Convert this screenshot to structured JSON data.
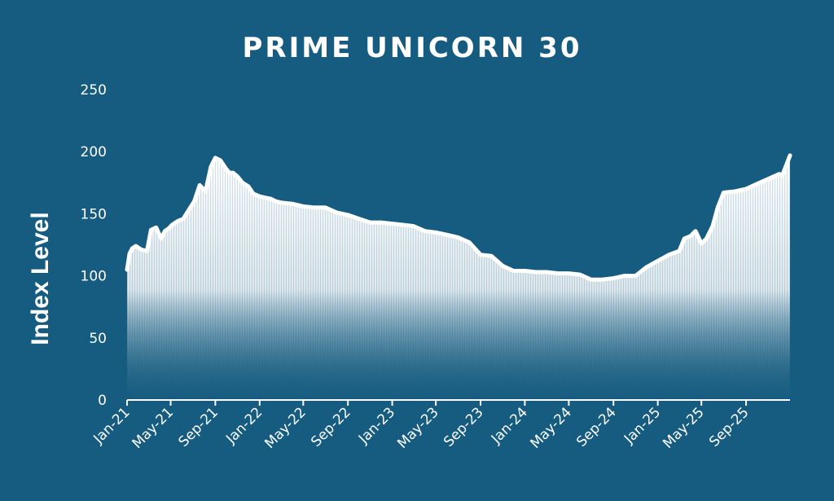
{
  "colors": {
    "background": "#165c80",
    "fill_top": "#ffffff",
    "axis": "#ffffff"
  },
  "chart_data": {
    "type": "area",
    "title": "PRIME UNICORN 30",
    "xlabel": "",
    "ylabel": "Index Level",
    "ylim": [
      0,
      250
    ],
    "yticks": [
      0,
      50,
      100,
      150,
      200,
      250
    ],
    "xlim": [
      "2021-01-01",
      "2025-12-31"
    ],
    "xtick_labels": [
      {
        "date": "2021-01-01",
        "label": "Jan-21"
      },
      {
        "date": "2021-05-01",
        "label": "May-21"
      },
      {
        "date": "2021-09-01",
        "label": "Sep-21"
      },
      {
        "date": "2022-01-01",
        "label": "Jan-22"
      },
      {
        "date": "2022-05-01",
        "label": "May-22"
      },
      {
        "date": "2022-09-01",
        "label": "Sep-22"
      },
      {
        "date": "2023-01-01",
        "label": "Jan-23"
      },
      {
        "date": "2023-05-01",
        "label": "May-23"
      },
      {
        "date": "2023-09-01",
        "label": "Sep-23"
      },
      {
        "date": "2024-01-01",
        "label": "Jan-24"
      },
      {
        "date": "2024-05-01",
        "label": "May-24"
      },
      {
        "date": "2024-09-01",
        "label": "Sep-24"
      },
      {
        "date": "2025-01-01",
        "label": "Jan-25"
      },
      {
        "date": "2025-05-01",
        "label": "May-25"
      },
      {
        "date": "2025-09-01",
        "label": "Sep-25"
      }
    ],
    "grid": false,
    "legend": "none",
    "series": [
      {
        "x": [
          "2021-01-01",
          "2021-01-08",
          "2021-01-15",
          "2021-01-25",
          "2021-02-10",
          "2021-02-25",
          "2021-03-08",
          "2021-03-22",
          "2021-04-05",
          "2021-04-15",
          "2021-04-25",
          "2021-05-05",
          "2021-05-20",
          "2021-06-05",
          "2021-06-20",
          "2021-07-05",
          "2021-07-20",
          "2021-08-05",
          "2021-08-20",
          "2021-09-01",
          "2021-09-15",
          "2021-10-01",
          "2021-10-10",
          "2021-10-20",
          "2021-11-01",
          "2021-11-15",
          "2021-12-01",
          "2021-12-15",
          "2022-01-01",
          "2022-01-15",
          "2022-02-01",
          "2022-02-15",
          "2022-03-01",
          "2022-04-01",
          "2022-05-01",
          "2022-06-01",
          "2022-07-01",
          "2022-08-01",
          "2022-09-01",
          "2022-10-01",
          "2022-11-01",
          "2022-12-01",
          "2023-01-01",
          "2023-02-01",
          "2023-03-01",
          "2023-04-01",
          "2023-05-01",
          "2023-06-01",
          "2023-07-01",
          "2023-08-01",
          "2023-09-01",
          "2023-10-01",
          "2023-11-01",
          "2023-12-01",
          "2024-01-01",
          "2024-02-01",
          "2024-03-01",
          "2024-04-01",
          "2024-05-01",
          "2024-06-01",
          "2024-07-01",
          "2024-08-01",
          "2024-09-01",
          "2024-10-01",
          "2024-11-01",
          "2024-12-01",
          "2025-01-01",
          "2025-02-01",
          "2025-03-01",
          "2025-03-15",
          "2025-04-01",
          "2025-04-15",
          "2025-05-01",
          "2025-05-15",
          "2025-06-01",
          "2025-06-15",
          "2025-07-01",
          "2025-08-01",
          "2025-09-01",
          "2025-10-01",
          "2025-11-01",
          "2025-12-01",
          "2025-12-10",
          "2025-12-31"
        ],
        "y": [
          105,
          118,
          122,
          124,
          121,
          120,
          137,
          139,
          130,
          136,
          138,
          141,
          144,
          146,
          153,
          160,
          173,
          168,
          188,
          195,
          193,
          186,
          183,
          183,
          180,
          175,
          172,
          166,
          164,
          163,
          162,
          160,
          159,
          158,
          156,
          155,
          155,
          151,
          149,
          146,
          143,
          143,
          142,
          141,
          140,
          136,
          135,
          133,
          131,
          127,
          117,
          116,
          108,
          104,
          104,
          103,
          103,
          102,
          102,
          101,
          97,
          97,
          98,
          100,
          100,
          107,
          112,
          117,
          120,
          130,
          132,
          136,
          126,
          130,
          140,
          155,
          167,
          168,
          170,
          174,
          178,
          182,
          181,
          197
        ]
      }
    ]
  }
}
